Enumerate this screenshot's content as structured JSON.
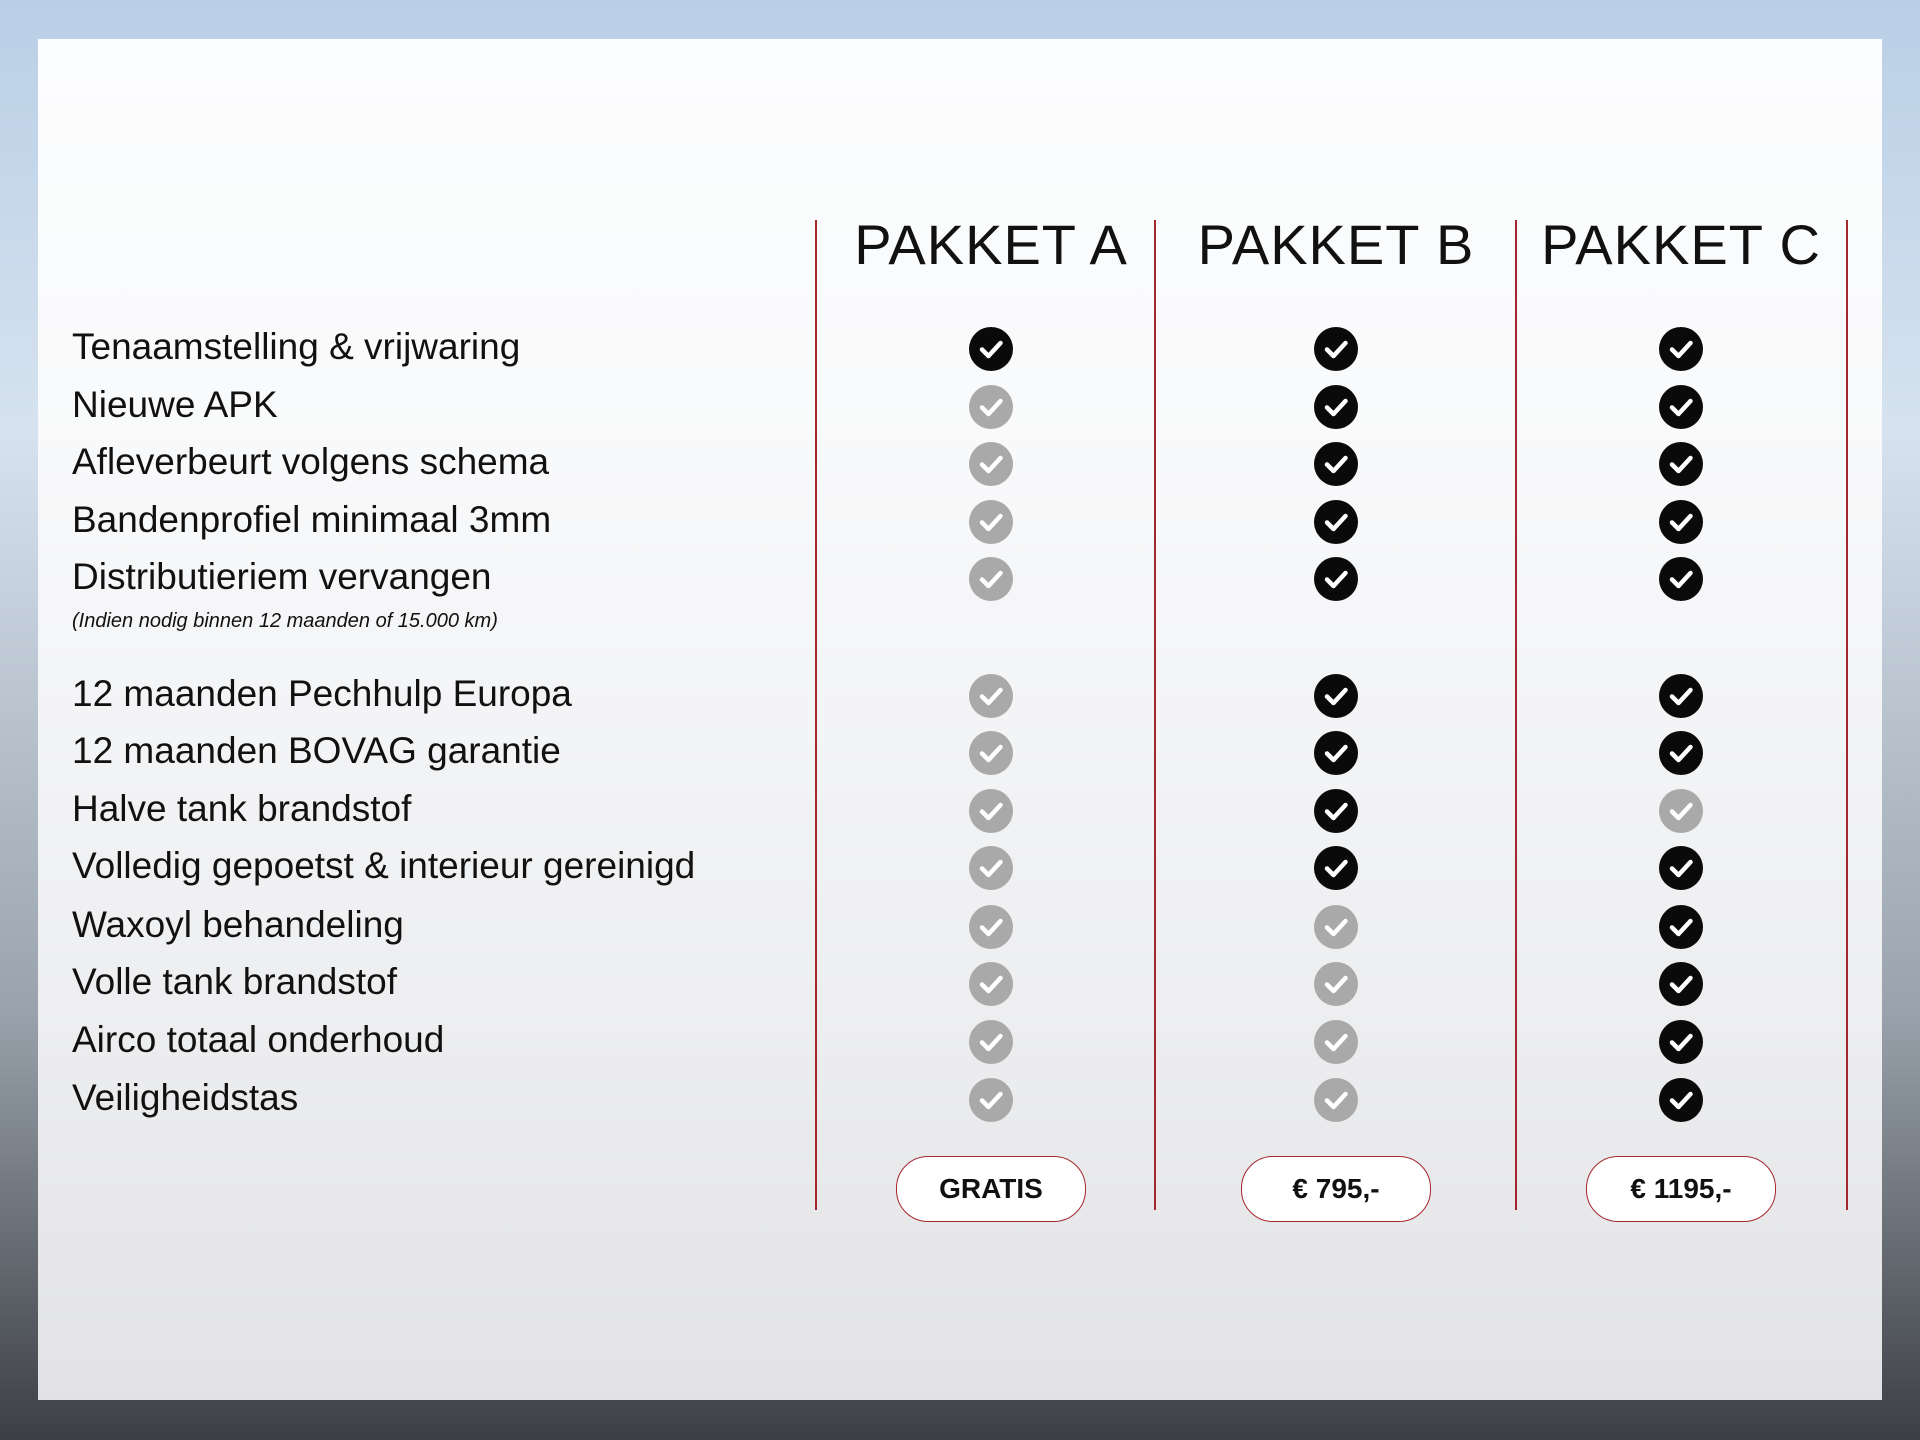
{
  "packages": [
    {
      "name": "PAKKET A",
      "price": "GRATIS"
    },
    {
      "name": "PAKKET B",
      "price": "€ 795,-"
    },
    {
      "name": "PAKKET C",
      "price": "€ 1195,-"
    }
  ],
  "features": [
    {
      "label": "Tenaamstelling & vrijwaring",
      "included": [
        true,
        true,
        true
      ]
    },
    {
      "label": "Nieuwe APK",
      "included": [
        false,
        true,
        true
      ]
    },
    {
      "label": "Afleverbeurt volgens schema",
      "included": [
        false,
        true,
        true
      ]
    },
    {
      "label": "Bandenprofiel minimaal 3mm",
      "included": [
        false,
        true,
        true
      ]
    },
    {
      "label": "Distributieriem vervangen",
      "included": [
        false,
        true,
        true
      ]
    },
    {
      "label": "12 maanden Pechhulp Europa",
      "included": [
        false,
        true,
        true
      ]
    },
    {
      "label": "12 maanden BOVAG garantie",
      "included": [
        false,
        true,
        true
      ]
    },
    {
      "label": "Halve tank brandstof",
      "included": [
        false,
        true,
        false
      ]
    },
    {
      "label": "Volledig gepoetst & interieur gereinigd",
      "included": [
        false,
        true,
        true
      ]
    },
    {
      "label": "Waxoyl behandeling",
      "included": [
        false,
        false,
        true
      ]
    },
    {
      "label": "Volle tank brandstof",
      "included": [
        false,
        false,
        true
      ]
    },
    {
      "label": "Airco totaal onderhoud",
      "included": [
        false,
        false,
        true
      ]
    },
    {
      "label": "Veiligheidstas",
      "included": [
        false,
        false,
        true
      ]
    }
  ],
  "note": "(Indien nodig binnen 12 maanden of 15.000 km)",
  "colors": {
    "accent": "#a3282d",
    "included": "#0a0a0a",
    "excluded": "#a9a9a9"
  }
}
